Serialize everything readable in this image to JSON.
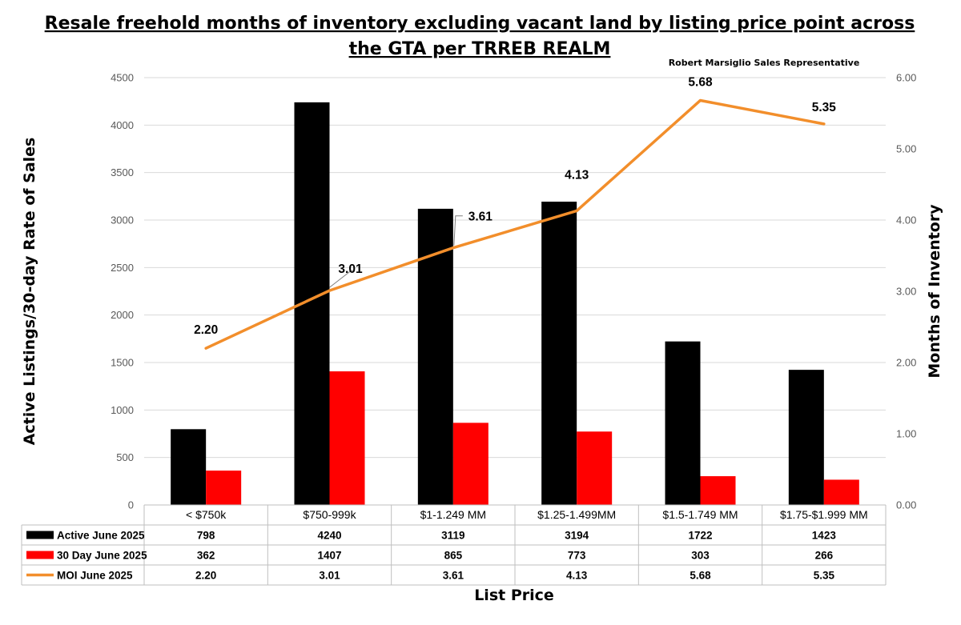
{
  "chart_data": {
    "type": "bar",
    "title_lines": [
      "Resale freehold months of inventory excluding vacant land by listing price point across",
      "the GTA per TRREB REALM"
    ],
    "credit": "Robert Marsiglio Sales Representative",
    "xlabel": "List Price",
    "ylabel": "Active Listings/30-day Rate of Sales",
    "y2label": "Months of Inventory",
    "ylim": [
      0,
      4500
    ],
    "y2lim": [
      0,
      6
    ],
    "yticks": [
      "0",
      "500",
      "1000",
      "1500",
      "2000",
      "2500",
      "3000",
      "3500",
      "4000",
      "4500"
    ],
    "y2ticks": [
      "0.00",
      "1.00",
      "2.00",
      "3.00",
      "4.00",
      "5.00",
      "6.00"
    ],
    "grid": true,
    "legend_placement": "data table below chart",
    "categories": [
      "< $750k",
      "$750-999k",
      "$1-1.249 MM",
      "$1.25-1.499MM",
      "$1.5-1.749 MM",
      "$1.75-$1.999 MM"
    ],
    "series": [
      {
        "name": "Active June 2025",
        "type": "bar",
        "axis": "left",
        "color": "#000000",
        "values": [
          798,
          4240,
          3119,
          3194,
          1722,
          1423
        ],
        "labels": [
          "798",
          "4240",
          "3119",
          "3194",
          "1722",
          "1423"
        ]
      },
      {
        "name": "30 Day June 2025",
        "type": "bar",
        "axis": "left",
        "color": "#ff0000",
        "values": [
          362,
          1407,
          865,
          773,
          303,
          266
        ],
        "labels": [
          "362",
          "1407",
          "865",
          "773",
          "303",
          "266"
        ]
      },
      {
        "name": "MOI June 2025",
        "type": "line",
        "axis": "right",
        "color": "#f28e2b",
        "values": [
          2.2,
          3.01,
          3.61,
          4.13,
          5.68,
          5.35
        ],
        "labels": [
          "2.20",
          "3.01",
          "3.61",
          "4.13",
          "5.68",
          "5.35"
        ]
      }
    ]
  }
}
